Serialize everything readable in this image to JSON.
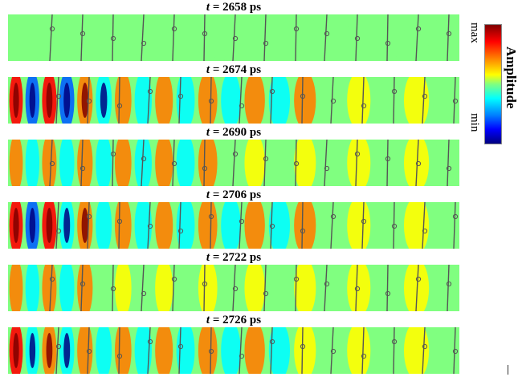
{
  "panels": [
    {
      "t_label": "2658 ps"
    },
    {
      "t_label": "2674 ps"
    },
    {
      "t_label": "2690 ps"
    },
    {
      "t_label": "2706 ps"
    },
    {
      "t_label": "2722 ps"
    },
    {
      "t_label": "2726 ps"
    }
  ],
  "time_symbol": "t",
  "eq": " = ",
  "colorbar": {
    "title": "Amplitude",
    "max_label": "max",
    "min_label": "min"
  },
  "colors": {
    "dark_red": "#7f0000",
    "red": "#ff0000",
    "orange": "#ff8000",
    "yellow": "#ffff00",
    "green": "#80ff80",
    "cyan": "#00ffff",
    "blue": "#0060ff",
    "dark_blue": "#00007f"
  }
}
